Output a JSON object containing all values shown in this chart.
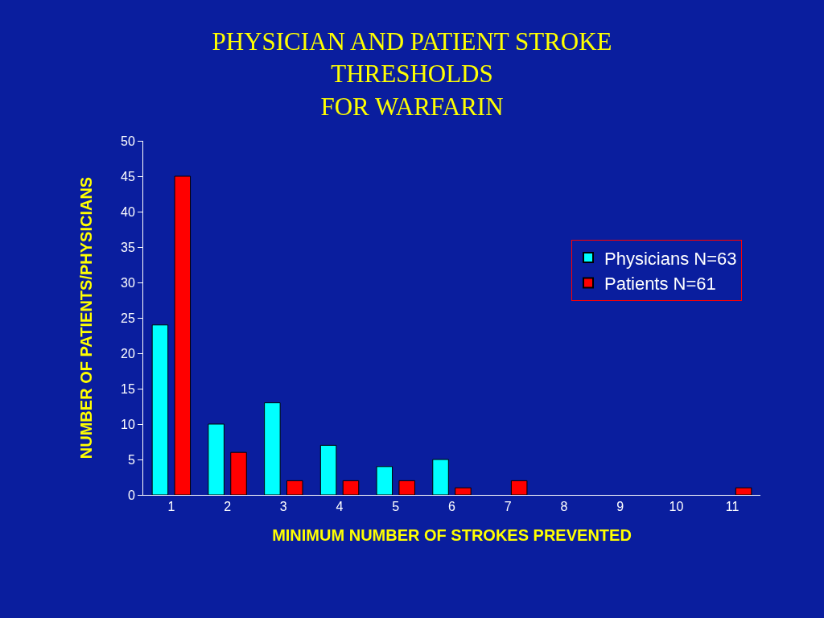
{
  "chart_data": {
    "type": "bar",
    "title": "PHYSICIAN AND PATIENT STROKE\nTHRESHOLDS\nFOR WARFARIN",
    "xlabel": "MINIMUM NUMBER OF STROKES PREVENTED",
    "ylabel": "NUMBER OF PATIENTS/PHYSICIANS",
    "categories": [
      "1",
      "2",
      "3",
      "4",
      "5",
      "6",
      "7",
      "8",
      "9",
      "10",
      "11"
    ],
    "series": [
      {
        "name": "Physicians N=63",
        "color": "#00ffff",
        "values": [
          24,
          10,
          13,
          7,
          4,
          5,
          0,
          0,
          0,
          0,
          0
        ]
      },
      {
        "name": "Patients N=61",
        "color": "#ff0000",
        "values": [
          45,
          6,
          2,
          2,
          2,
          1,
          2,
          0,
          0,
          0,
          1
        ]
      }
    ],
    "ylim": [
      0,
      50
    ],
    "yticks": [
      0,
      5,
      10,
      15,
      20,
      25,
      30,
      35,
      40,
      45,
      50
    ],
    "grid": false,
    "legend": "top right"
  }
}
